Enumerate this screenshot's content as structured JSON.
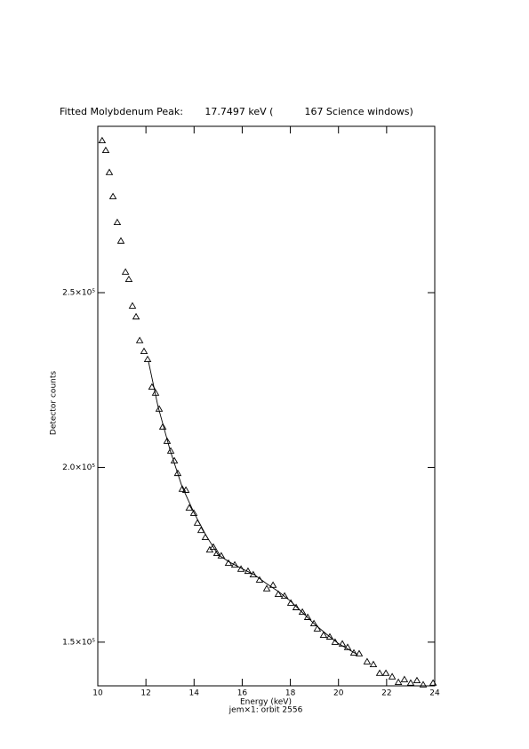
{
  "chart_data": {
    "type": "scatter",
    "title": "Fitted Molybdenum Peak:       17.7497 keV (          167 Science windows)",
    "x_label": "Energy (keV)",
    "subtitle": "jem×1: orbit 2556",
    "y_label": "Detector counts",
    "xlim": [
      10,
      24
    ],
    "xticks": [
      10,
      12,
      14,
      16,
      18,
      20,
      22,
      24
    ],
    "ylim": [
      137500,
      297600
    ],
    "yticks": [
      {
        "value": 150000,
        "label": "1.5×10⁵"
      },
      {
        "value": 200000,
        "label": "2.0×10⁵"
      },
      {
        "value": 250000,
        "label": "2.5×10⁵"
      }
    ],
    "color": "#000000",
    "x": [
      10.18,
      10.33,
      10.48,
      10.63,
      10.81,
      10.96,
      11.15,
      11.29,
      11.44,
      11.59,
      11.74,
      11.92,
      12.07,
      12.25,
      12.4,
      12.55,
      12.7,
      12.88,
      13.03,
      13.18,
      13.32,
      13.51,
      13.66,
      13.8,
      13.99,
      14.14,
      14.29,
      14.47,
      14.65,
      14.8,
      14.95,
      15.13,
      15.43,
      15.69,
      15.95,
      16.24,
      16.46,
      16.72,
      17.02,
      17.28,
      17.5,
      17.76,
      18.02,
      18.24,
      18.5,
      18.72,
      18.98,
      19.12,
      19.38,
      19.64,
      19.86,
      20.16,
      20.38,
      20.64,
      20.86,
      21.19,
      21.45,
      21.71,
      21.97,
      22.23,
      22.49,
      22.74,
      23.0,
      23.26,
      23.52,
      23.93
    ],
    "values": [
      293500,
      290700,
      284400,
      277500,
      270100,
      264800,
      255900,
      253800,
      246200,
      243100,
      236300,
      233200,
      230900,
      223000,
      221300,
      216700,
      211600,
      207500,
      204700,
      201900,
      198300,
      193800,
      193500,
      188400,
      186900,
      184100,
      182000,
      180000,
      176400,
      177200,
      175400,
      174700,
      172600,
      172100,
      170900,
      170300,
      169300,
      167800,
      165300,
      166300,
      163700,
      163200,
      161200,
      159900,
      158600,
      157100,
      155300,
      153800,
      152000,
      151500,
      150000,
      149500,
      148500,
      146900,
      146700,
      144400,
      143600,
      141100,
      141100,
      140100,
      138500,
      139300,
      138300,
      139000,
      137800,
      138300
    ],
    "fit": {
      "x": [
        12.1,
        12.5,
        13,
        13.5,
        14,
        14.5,
        15,
        15.5,
        16,
        16.5,
        17,
        17.5,
        18,
        18.5,
        19,
        19.5,
        20,
        20.5,
        20.8
      ],
      "values": [
        230500,
        217500,
        205000,
        194500,
        187000,
        180500,
        175000,
        172800,
        171000,
        169300,
        166800,
        164500,
        161800,
        158500,
        155200,
        152300,
        149600,
        147600,
        146400
      ]
    }
  }
}
